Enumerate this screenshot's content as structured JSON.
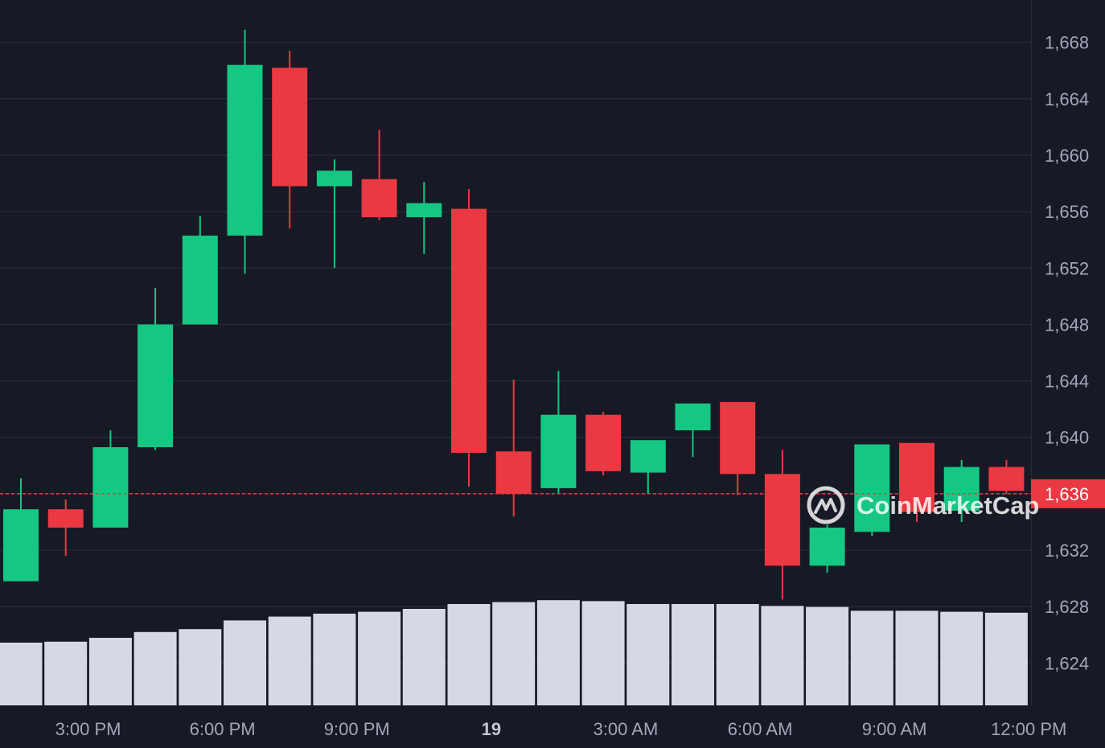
{
  "chart_data": {
    "type": "candlestick",
    "title": "",
    "xlabel": "",
    "ylabel": "",
    "ylim": [
      1621,
      1671
    ],
    "y_ticks": [
      1624,
      1628,
      1632,
      1636,
      1640,
      1644,
      1648,
      1652,
      1656,
      1660,
      1664,
      1668
    ],
    "y_tick_labels": [
      "1,624",
      "1,628",
      "1,632",
      "1,636",
      "1,640",
      "1,644",
      "1,648",
      "1,652",
      "1,656",
      "1,660",
      "1,664",
      "1,668"
    ],
    "x_ticks": [
      {
        "label": "3:00 PM",
        "index": 1.5,
        "bold": false
      },
      {
        "label": "6:00 PM",
        "index": 4.5,
        "bold": false
      },
      {
        "label": "9:00 PM",
        "index": 7.5,
        "bold": false
      },
      {
        "label": "19",
        "index": 10.5,
        "bold": true
      },
      {
        "label": "3:00 AM",
        "index": 13.5,
        "bold": false
      },
      {
        "label": "6:00 AM",
        "index": 16.5,
        "bold": false
      },
      {
        "label": "9:00 AM",
        "index": 19.5,
        "bold": false
      },
      {
        "label": "12:00 PM",
        "index": 22.5,
        "bold": false
      }
    ],
    "candles": [
      {
        "open": 1629.8,
        "high": 1637.1,
        "low": 1629.8,
        "close": 1634.9
      },
      {
        "open": 1634.9,
        "high": 1635.6,
        "low": 1631.6,
        "close": 1633.6
      },
      {
        "open": 1633.6,
        "high": 1640.5,
        "low": 1633.6,
        "close": 1639.3
      },
      {
        "open": 1639.3,
        "high": 1650.6,
        "low": 1639.1,
        "close": 1648.0
      },
      {
        "open": 1648.0,
        "high": 1655.7,
        "low": 1648.0,
        "close": 1654.3
      },
      {
        "open": 1654.3,
        "high": 1668.9,
        "low": 1651.6,
        "close": 1666.4
      },
      {
        "open": 1666.2,
        "high": 1667.4,
        "low": 1654.8,
        "close": 1657.8
      },
      {
        "open": 1657.8,
        "high": 1659.7,
        "low": 1652.0,
        "close": 1658.9
      },
      {
        "open": 1658.3,
        "high": 1661.8,
        "low": 1655.4,
        "close": 1655.6
      },
      {
        "open": 1655.6,
        "high": 1658.1,
        "low": 1653.0,
        "close": 1656.6
      },
      {
        "open": 1656.2,
        "high": 1657.6,
        "low": 1636.5,
        "close": 1638.9
      },
      {
        "open": 1639.0,
        "high": 1644.1,
        "low": 1634.4,
        "close": 1636.0
      },
      {
        "open": 1636.4,
        "high": 1644.7,
        "low": 1636.0,
        "close": 1641.6
      },
      {
        "open": 1641.6,
        "high": 1641.8,
        "low": 1637.3,
        "close": 1637.6
      },
      {
        "open": 1637.5,
        "high": 1639.8,
        "low": 1636.0,
        "close": 1639.8
      },
      {
        "open": 1640.5,
        "high": 1642.4,
        "low": 1638.6,
        "close": 1642.4
      },
      {
        "open": 1642.5,
        "high": 1642.5,
        "low": 1635.9,
        "close": 1637.4
      },
      {
        "open": 1637.4,
        "high": 1639.1,
        "low": 1628.5,
        "close": 1630.9
      },
      {
        "open": 1630.9,
        "high": 1633.8,
        "low": 1630.4,
        "close": 1633.6
      },
      {
        "open": 1633.3,
        "high": 1639.5,
        "low": 1633.0,
        "close": 1639.5
      },
      {
        "open": 1639.6,
        "high": 1639.6,
        "low": 1634.0,
        "close": 1634.7
      },
      {
        "open": 1634.8,
        "high": 1638.4,
        "low": 1634.0,
        "close": 1637.9
      },
      {
        "open": 1637.9,
        "high": 1638.4,
        "low": 1636.0,
        "close": 1636.2
      }
    ],
    "volume_relative": [
      0.65,
      0.66,
      0.7,
      0.76,
      0.79,
      0.88,
      0.92,
      0.95,
      0.97,
      1.0,
      1.05,
      1.07,
      1.09,
      1.08,
      1.05,
      1.05,
      1.05,
      1.03,
      1.02,
      0.98,
      0.98,
      0.97,
      0.96
    ],
    "current_price": 1636,
    "current_price_label": "1,636",
    "colors": {
      "background": "#171924",
      "grid": "#262937",
      "up": "#16c784",
      "down": "#ea3943",
      "volume": "#d5d9e6",
      "axis_text": "#a1a7bb",
      "price_line": "#ea3943"
    },
    "grid": true,
    "legend": "none"
  },
  "watermark": {
    "text": "CoinMarketCap",
    "icon": "coinmarketcap-logo-icon"
  }
}
